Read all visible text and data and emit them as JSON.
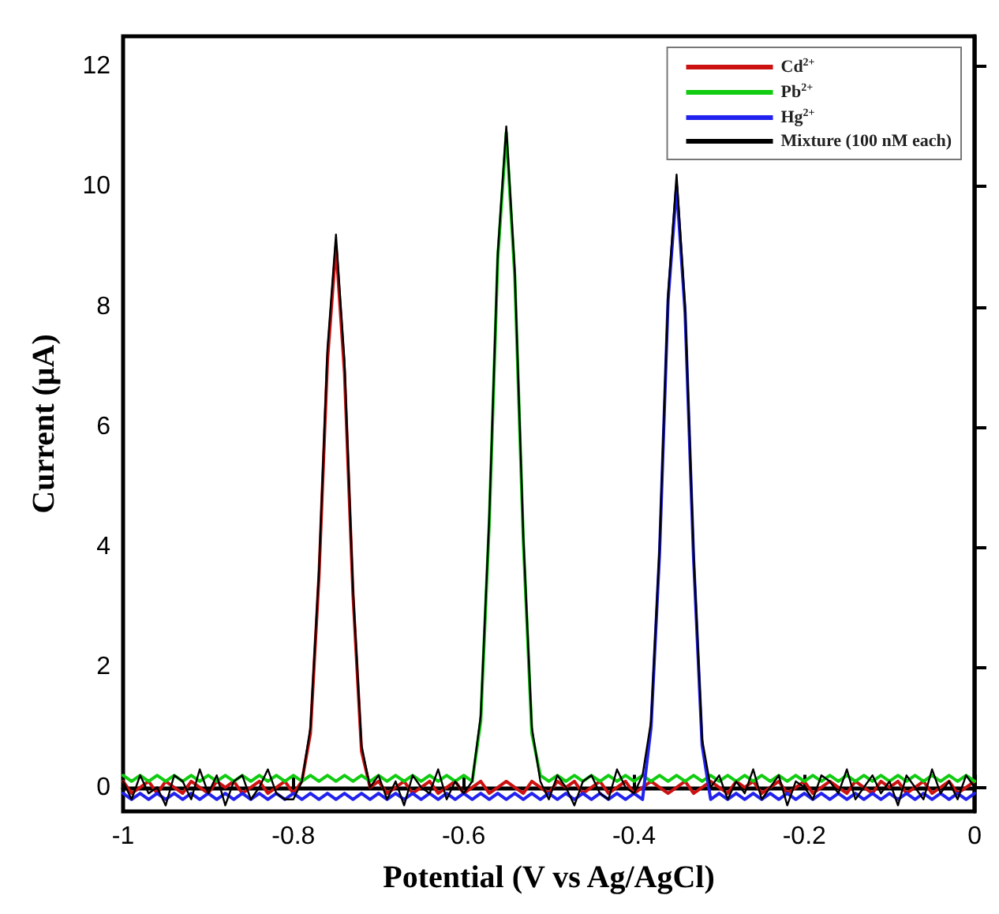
{
  "chart_data": {
    "type": "line",
    "xlabel": "Potential (V vs Ag/AgCl)",
    "ylabel": "Current (μA)",
    "x": [
      -1,
      -0.99,
      -0.98,
      -0.97,
      -0.96,
      -0.95,
      -0.94,
      -0.93,
      -0.92,
      -0.91,
      -0.9,
      -0.89,
      -0.88,
      -0.87,
      -0.86,
      -0.85,
      -0.84,
      -0.83,
      -0.82,
      -0.81,
      -0.8,
      -0.79,
      -0.78,
      -0.77,
      -0.76,
      -0.75,
      -0.74,
      -0.73,
      -0.72,
      -0.71,
      -0.7,
      -0.69,
      -0.68,
      -0.67,
      -0.66,
      -0.65,
      -0.64,
      -0.63,
      -0.62,
      -0.61,
      -0.6,
      -0.59,
      -0.58,
      -0.57,
      -0.56,
      -0.55,
      -0.54,
      -0.53,
      -0.52,
      -0.51,
      -0.5,
      -0.49,
      -0.48,
      -0.47,
      -0.46,
      -0.45,
      -0.44,
      -0.43,
      -0.42,
      -0.41,
      -0.4,
      -0.39,
      -0.38,
      -0.37,
      -0.36,
      -0.35,
      -0.34,
      -0.33,
      -0.32,
      -0.31,
      -0.3,
      -0.29,
      -0.28,
      -0.27,
      -0.26,
      -0.25,
      -0.24,
      -0.23,
      -0.22,
      -0.21,
      -0.2,
      -0.19,
      -0.18,
      -0.17,
      -0.16,
      -0.15,
      -0.14,
      -0.13,
      -0.12,
      -0.11,
      -0.1,
      -0.09,
      -0.08,
      -0.07,
      -0.06,
      -0.05,
      -0.04,
      -0.03,
      -0.02,
      -0.01,
      0
    ],
    "series": [
      {
        "name": "Cd$^{2+}$",
        "color": "#cc1111",
        "values": [
          0.1,
          -0.1,
          0.0,
          0.1,
          -0.1,
          0.1,
          0.0,
          -0.1,
          0.1,
          0.0,
          -0.1,
          0.1,
          0.0,
          0.1,
          -0.1,
          0.0,
          0.1,
          -0.1,
          0.0,
          0.1,
          -0.1,
          0.1,
          0.9,
          3.5,
          7.1,
          9.0,
          6.9,
          3.2,
          0.6,
          0.0,
          0.1,
          -0.1,
          0.0,
          0.1,
          -0.1,
          0.0,
          0.1,
          -0.1,
          0.0,
          0.1,
          -0.1,
          0.0,
          0.1,
          -0.1,
          0.0,
          0.1,
          0.0,
          -0.1,
          0.1,
          0.0,
          -0.1,
          0.1,
          0.0,
          0.1,
          -0.1,
          0.0,
          0.1,
          -0.1,
          0.0,
          0.1,
          -0.1,
          0.0,
          0.1,
          0.0,
          -0.1,
          0.0,
          0.1,
          -0.1,
          0.0,
          0.1,
          0.0,
          -0.1,
          0.1,
          0.0,
          0.1,
          -0.1,
          0.0,
          0.1,
          -0.1,
          0.0,
          0.1,
          -0.1,
          0.0,
          0.1,
          0.0,
          -0.1,
          0.1,
          0.0,
          -0.1,
          0.1,
          0.0,
          0.1,
          -0.1,
          0.0,
          0.1,
          -0.1,
          0.0,
          0.1,
          -0.1,
          0.0,
          0.1
        ]
      },
      {
        "name": "Pb$^{2+}$",
        "color": "#11cc11",
        "values": [
          0.2,
          0.1,
          0.2,
          0.1,
          0.2,
          0.1,
          0.2,
          0.1,
          0.2,
          0.1,
          0.2,
          0.1,
          0.2,
          0.1,
          0.2,
          0.1,
          0.2,
          0.1,
          0.2,
          0.1,
          0.2,
          0.1,
          0.2,
          0.1,
          0.2,
          0.1,
          0.2,
          0.1,
          0.2,
          0.1,
          0.2,
          0.1,
          0.2,
          0.1,
          0.2,
          0.1,
          0.2,
          0.1,
          0.2,
          0.1,
          0.2,
          0.1,
          1.1,
          4.4,
          8.8,
          10.9,
          8.5,
          4.1,
          0.9,
          0.2,
          0.1,
          0.2,
          0.1,
          0.2,
          0.1,
          0.2,
          0.1,
          0.2,
          0.1,
          0.2,
          0.1,
          0.2,
          0.1,
          0.2,
          0.1,
          0.2,
          0.1,
          0.2,
          0.1,
          0.2,
          0.1,
          0.2,
          0.1,
          0.2,
          0.1,
          0.2,
          0.1,
          0.2,
          0.1,
          0.2,
          0.1,
          0.2,
          0.1,
          0.2,
          0.1,
          0.2,
          0.1,
          0.2,
          0.1,
          0.2,
          0.1,
          0.2,
          0.1,
          0.2,
          0.1,
          0.2,
          0.1,
          0.2,
          0.1,
          0.2,
          0.1
        ]
      },
      {
        "name": "Hg$^{2+}$",
        "color": "#2222ee",
        "values": [
          -0.1,
          -0.2,
          -0.1,
          -0.2,
          -0.1,
          -0.2,
          -0.1,
          -0.2,
          -0.1,
          -0.2,
          -0.1,
          -0.2,
          -0.1,
          -0.2,
          -0.1,
          -0.2,
          -0.1,
          -0.2,
          -0.1,
          -0.2,
          -0.1,
          -0.2,
          -0.1,
          -0.2,
          -0.1,
          -0.2,
          -0.1,
          -0.2,
          -0.1,
          -0.2,
          -0.1,
          -0.2,
          -0.1,
          -0.2,
          -0.1,
          -0.2,
          -0.1,
          -0.2,
          -0.1,
          -0.2,
          -0.1,
          -0.2,
          -0.1,
          -0.2,
          -0.1,
          -0.2,
          -0.1,
          -0.2,
          -0.1,
          -0.2,
          -0.1,
          -0.2,
          -0.1,
          -0.2,
          -0.1,
          -0.2,
          -0.1,
          -0.2,
          -0.1,
          -0.2,
          -0.1,
          -0.2,
          1.0,
          3.9,
          8.1,
          10.0,
          7.9,
          3.8,
          0.7,
          -0.2,
          -0.1,
          -0.2,
          -0.1,
          -0.2,
          -0.1,
          -0.2,
          -0.1,
          -0.2,
          -0.1,
          -0.2,
          -0.1,
          -0.2,
          -0.1,
          -0.2,
          -0.1,
          -0.2,
          -0.1,
          -0.2,
          -0.1,
          -0.2,
          -0.1,
          -0.2,
          -0.1,
          -0.2,
          -0.1,
          -0.2,
          -0.1,
          -0.2,
          -0.1,
          -0.2,
          -0.1
        ]
      },
      {
        "name": "Mixture (100 nM each)",
        "color": "#000000",
        "values": [
          0.1,
          -0.2,
          0.2,
          -0.1,
          0.0,
          -0.3,
          0.2,
          0.1,
          -0.2,
          0.3,
          -0.1,
          0.2,
          -0.3,
          0.1,
          0.2,
          -0.2,
          0.0,
          0.3,
          -0.1,
          -0.2,
          -0.2,
          0.1,
          1.0,
          3.6,
          7.3,
          9.2,
          7.1,
          3.3,
          0.7,
          0.0,
          0.2,
          -0.2,
          0.1,
          -0.3,
          0.2,
          0.0,
          -0.1,
          0.3,
          -0.2,
          0.1,
          -0.1,
          0.1,
          1.2,
          4.5,
          8.9,
          11.0,
          8.6,
          4.2,
          1.0,
          0.1,
          -0.2,
          0.2,
          0.0,
          -0.3,
          0.1,
          0.2,
          -0.1,
          -0.2,
          0.3,
          0.0,
          -0.1,
          0.2,
          1.1,
          4.0,
          8.2,
          10.2,
          8.0,
          3.9,
          0.8,
          0.0,
          0.2,
          -0.2,
          0.1,
          -0.1,
          0.3,
          -0.2,
          0.0,
          0.2,
          -0.3,
          0.1,
          0.0,
          -0.2,
          0.2,
          0.1,
          -0.1,
          0.3,
          -0.2,
          0.0,
          0.2,
          -0.1,
          0.1,
          -0.3,
          0.2,
          0.0,
          -0.2,
          0.3,
          -0.1,
          0.1,
          -0.2,
          0.2,
          0.0
        ]
      }
    ],
    "xlim": [
      -1,
      0
    ],
    "xticks": [
      -1,
      -0.8,
      -0.6,
      -0.4,
      -0.2,
      0
    ],
    "ylim": [
      -0.4,
      12.5
    ],
    "yticks": [
      0,
      2,
      4,
      6,
      8,
      10,
      12
    ],
    "legend": "top right",
    "marker": "none",
    "line_style": "solid"
  }
}
